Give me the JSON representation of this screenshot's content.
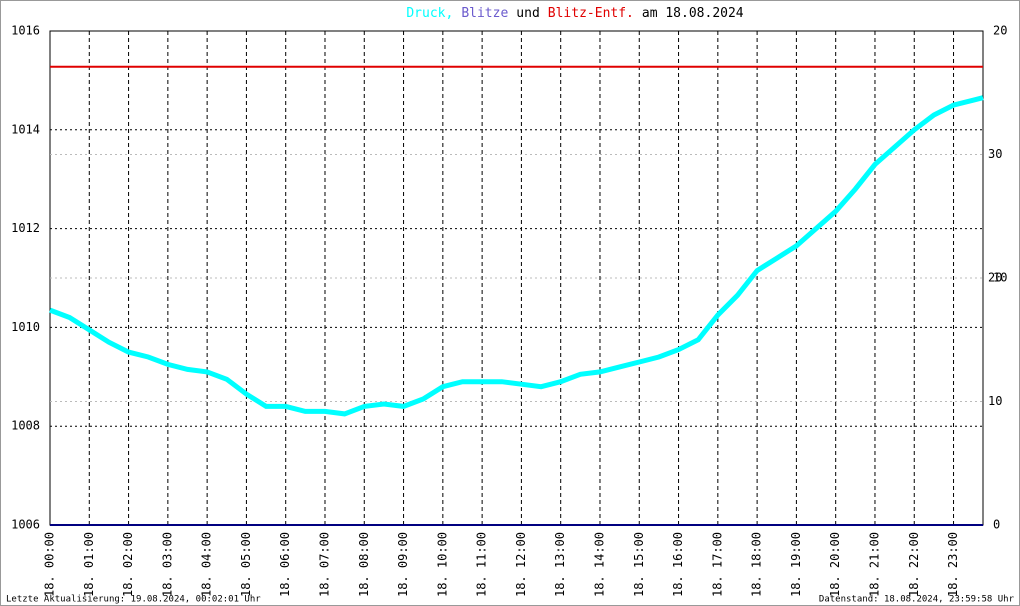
{
  "chart_data": {
    "type": "line",
    "title": [
      "Druck,",
      "Blitze",
      "und",
      "Blitz-Entf.",
      "am 18.08.2024"
    ],
    "xlim": [
      0,
      23.75
    ],
    "xticks": [
      {
        "value": 0,
        "label": "18. 00:00"
      },
      {
        "value": 1,
        "label": "18. 01:00"
      },
      {
        "value": 2,
        "label": "18. 02:00"
      },
      {
        "value": 3,
        "label": "18. 03:00"
      },
      {
        "value": 4,
        "label": "18. 04:00"
      },
      {
        "value": 5,
        "label": "18. 05:00"
      },
      {
        "value": 6,
        "label": "18. 06:00"
      },
      {
        "value": 7,
        "label": "18. 07:00"
      },
      {
        "value": 8,
        "label": "18. 08:00"
      },
      {
        "value": 9,
        "label": "18. 09:00"
      },
      {
        "value": 10,
        "label": "18. 10:00"
      },
      {
        "value": 11,
        "label": "18. 11:00"
      },
      {
        "value": 12,
        "label": "18. 12:00"
      },
      {
        "value": 13,
        "label": "18. 13:00"
      },
      {
        "value": 14,
        "label": "18. 14:00"
      },
      {
        "value": 15,
        "label": "18. 15:00"
      },
      {
        "value": 16,
        "label": "18. 16:00"
      },
      {
        "value": 17,
        "label": "18. 17:00"
      },
      {
        "value": 18,
        "label": "18. 18:00"
      },
      {
        "value": 19,
        "label": "18. 19:00"
      },
      {
        "value": 20,
        "label": "18. 20:00"
      },
      {
        "value": 21,
        "label": "18. 21:00"
      },
      {
        "value": 22,
        "label": "18. 22:00"
      },
      {
        "value": 23,
        "label": "18. 23:00"
      }
    ],
    "ylim": [
      1006,
      1016
    ],
    "yticks": [
      1006,
      1008,
      1010,
      1012,
      1014,
      1016
    ],
    "y2lim": [
      0,
      20
    ],
    "y2ticks": [
      0,
      10,
      20
    ],
    "y2color": "#000000",
    "y3lim": [
      0,
      40
    ],
    "y3ticks": [
      10,
      20,
      30
    ],
    "y3color": "#cc0000",
    "grid": true,
    "series": [
      {
        "name": "Druck",
        "color": "#00ffff",
        "axis": "y",
        "x": [
          0,
          0.5,
          1,
          1.5,
          2,
          2.5,
          3,
          3.5,
          4,
          4.5,
          5,
          5.5,
          6,
          6.5,
          7,
          7.5,
          8,
          8.5,
          9,
          9.5,
          10,
          10.5,
          11,
          11.5,
          12,
          12.5,
          13,
          13.5,
          14,
          14.5,
          15,
          15.5,
          16,
          16.5,
          17,
          17.5,
          18,
          18.5,
          19,
          19.5,
          20,
          20.5,
          21,
          21.5,
          22,
          22.5,
          23,
          23.5,
          23.75
        ],
        "values": [
          1010.35,
          1010.2,
          1009.95,
          1009.7,
          1009.5,
          1009.4,
          1009.25,
          1009.15,
          1009.1,
          1008.95,
          1008.65,
          1008.4,
          1008.4,
          1008.3,
          1008.3,
          1008.25,
          1008.4,
          1008.45,
          1008.4,
          1008.55,
          1008.8,
          1008.9,
          1008.9,
          1008.9,
          1008.85,
          1008.8,
          1008.9,
          1009.05,
          1009.1,
          1009.2,
          1009.3,
          1009.4,
          1009.55,
          1009.75,
          1010.25,
          1010.65,
          1011.15,
          1011.4,
          1011.65,
          1012.0,
          1012.35,
          1012.8,
          1013.3,
          1013.65,
          1014.0,
          1014.3,
          1014.5,
          1014.6,
          1014.65
        ]
      },
      {
        "name": "Blitze",
        "color": "#000080",
        "axis": "y2",
        "x": [
          0,
          23.75
        ],
        "values": [
          0,
          0
        ]
      },
      {
        "name": "Blitz-Entf.",
        "color": "#e00000",
        "axis": "y3",
        "x": [
          0,
          23.75
        ],
        "values": [
          37.1,
          37.1
        ]
      }
    ],
    "footer_left": "Letzte Aktualisierung: 19.08.2024, 00:02:01 Uhr",
    "footer_right": "Datenstand: 18.08.2024, 23:59:58 Uhr"
  }
}
